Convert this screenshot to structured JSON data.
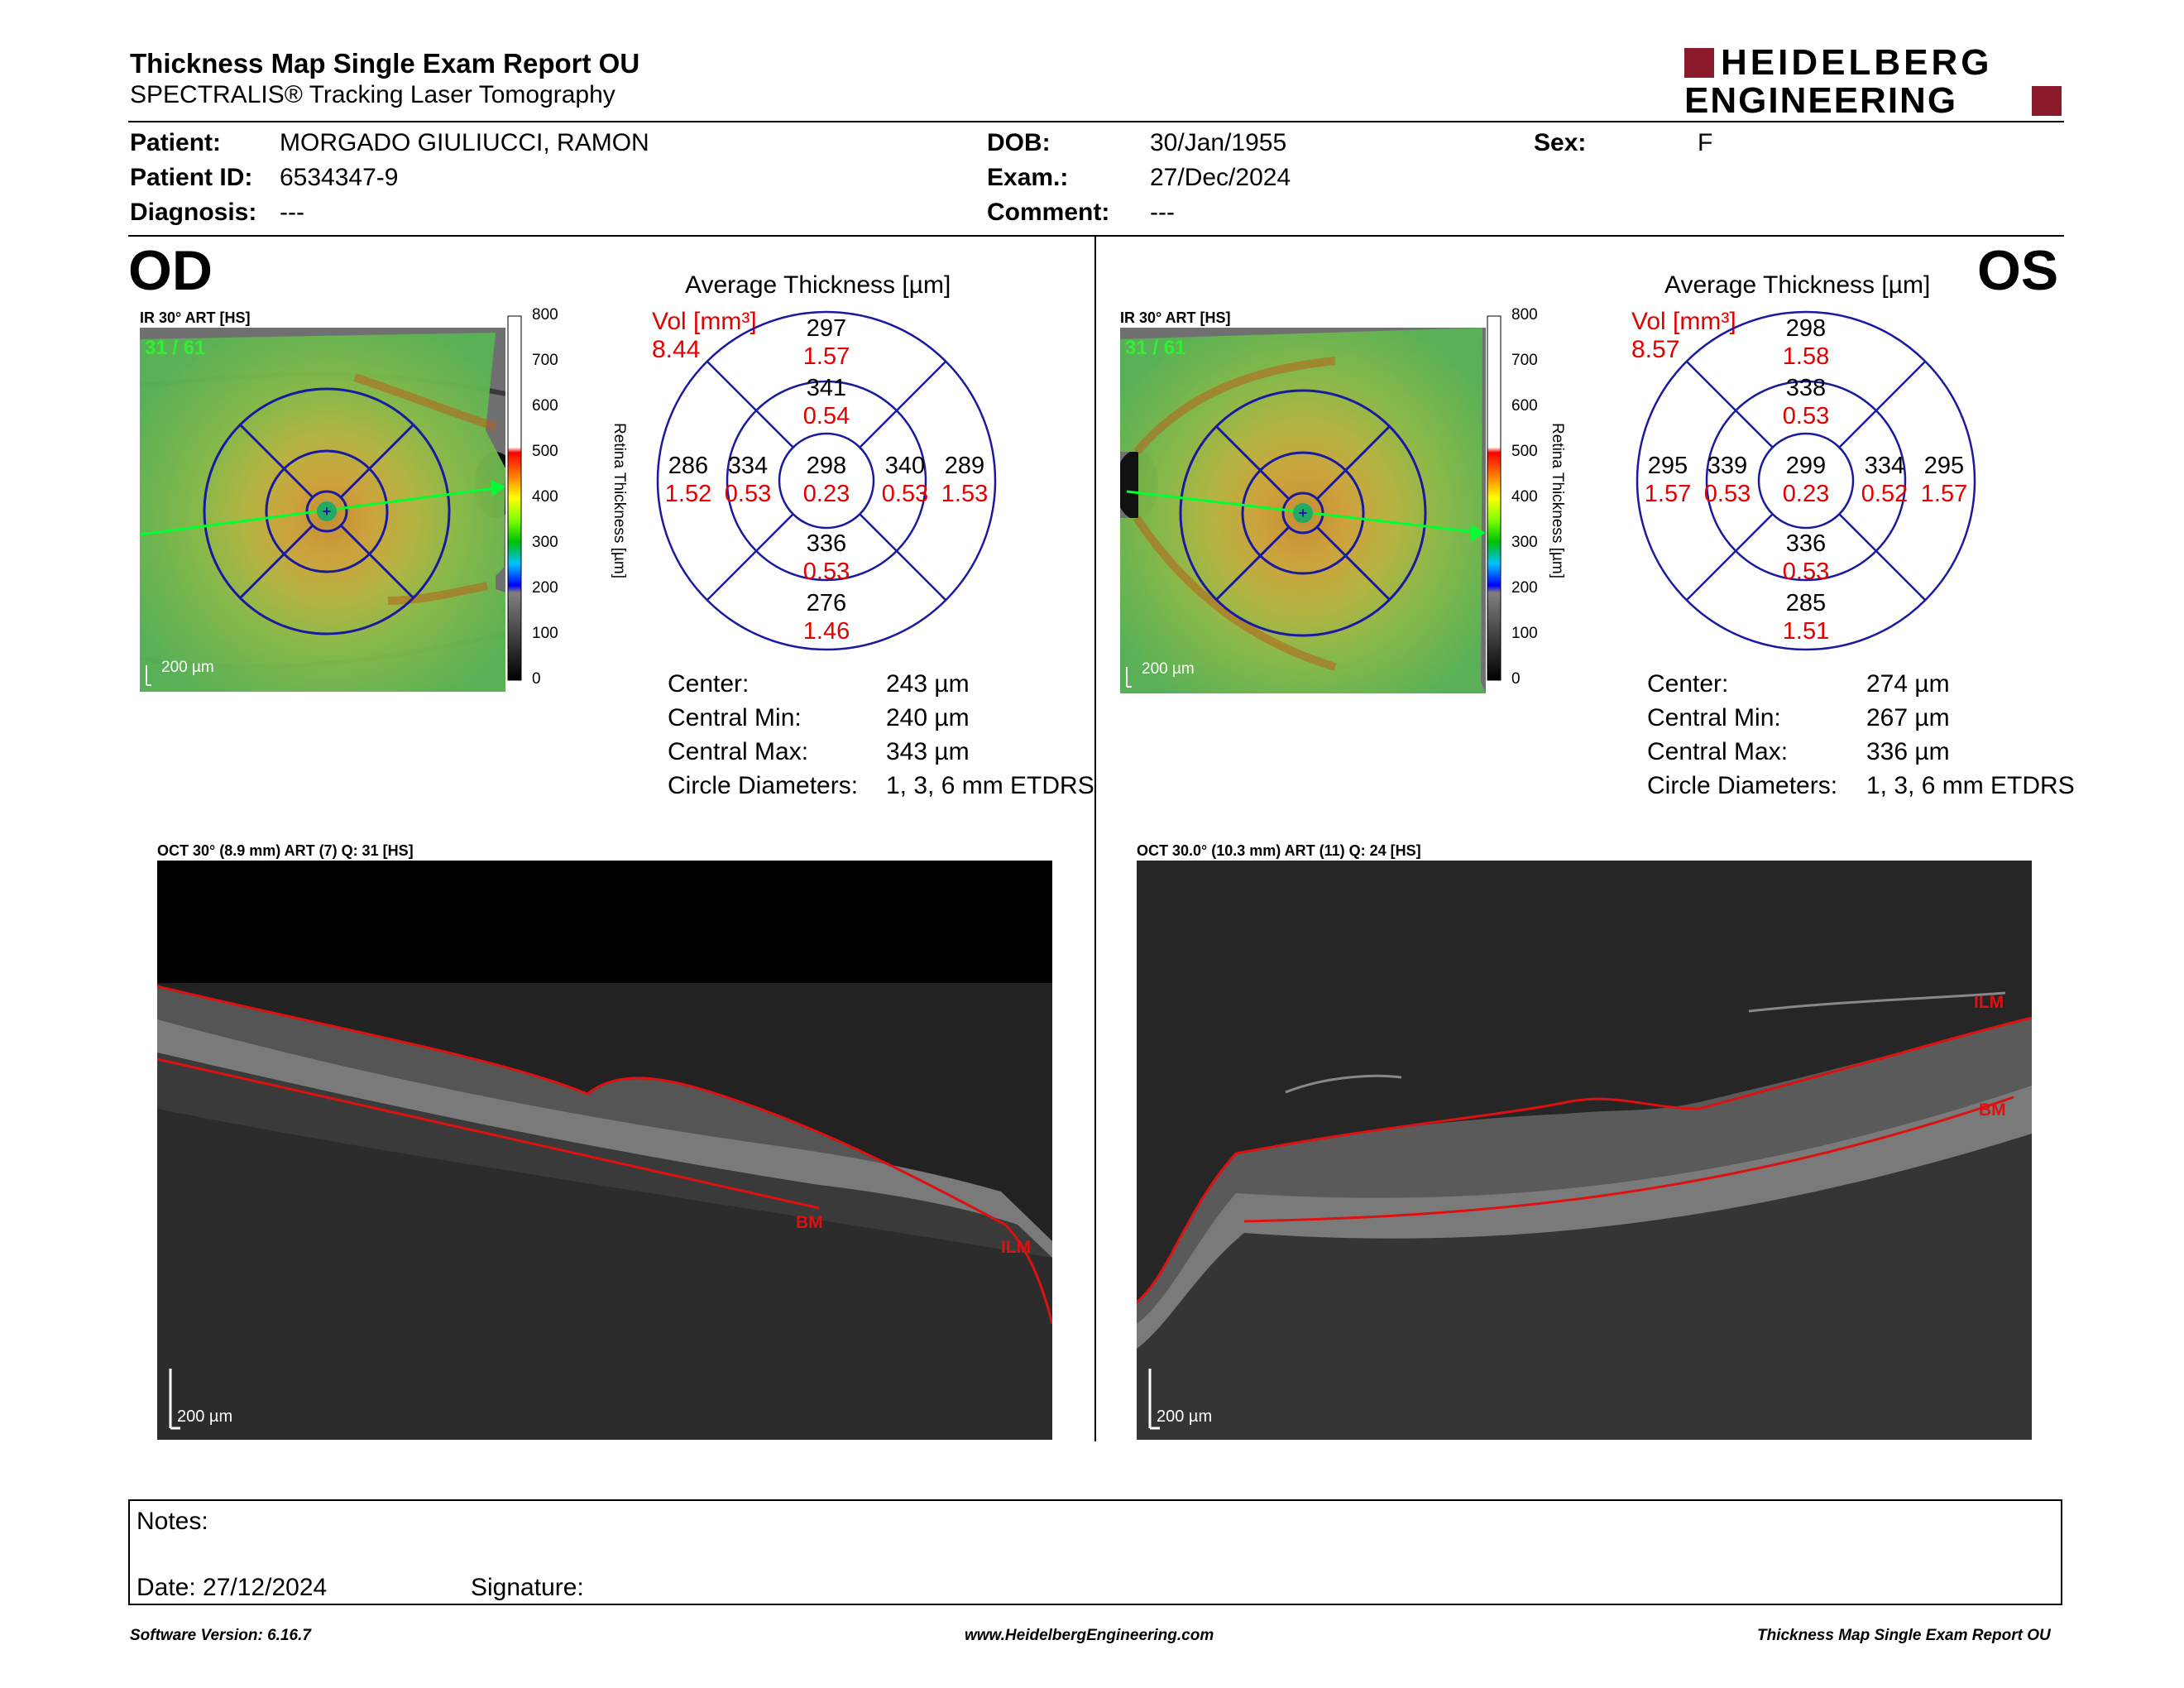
{
  "header": {
    "title": "Thickness Map Single Exam Report OU",
    "subtitle": "SPECTRALIS® Tracking Laser Tomography",
    "logo_line1": "HEIDELBERG",
    "logo_line2": "ENGINEERING"
  },
  "patient": {
    "patient_label": "Patient:",
    "patient_value": "MORGADO GIULIUCCI, RAMON",
    "id_label": "Patient ID:",
    "id_value": "6534347-9",
    "diagnosis_label": "Diagnosis:",
    "diagnosis_value": "---",
    "dob_label": "DOB:",
    "dob_value": "30/Jan/1955",
    "exam_label": "Exam.:",
    "exam_value": "27/Dec/2024",
    "comment_label": "Comment:",
    "comment_value": "---",
    "sex_label": "Sex:",
    "sex_value": "F"
  },
  "od": {
    "eye_label": "OD",
    "fundus_label": "IR 30° ART [HS]",
    "frames": "31 / 61",
    "scale": "200 µm",
    "avg_title": "Average Thickness [µm]",
    "vol_label": "Vol [mm³]",
    "vol_value": "8.44",
    "grid": {
      "top_outer": "297",
      "top_outer_vol": "1.57",
      "top_inner": "341",
      "top_inner_vol": "0.54",
      "left_outer": "286",
      "left_outer_vol": "1.52",
      "left_inner": "334",
      "left_inner_vol": "0.53",
      "center": "298",
      "center_vol": "0.23",
      "right_inner": "340",
      "right_inner_vol": "0.53",
      "right_outer": "289",
      "right_outer_vol": "1.53",
      "bottom_inner": "336",
      "bottom_inner_vol": "0.53",
      "bottom_outer": "276",
      "bottom_outer_vol": "1.46"
    },
    "center_label": "Center:",
    "center_value": "243 µm",
    "cmin_label": "Central Min:",
    "cmin_value": "240 µm",
    "cmax_label": "Central Max:",
    "cmax_value": "343 µm",
    "diam_label": "Circle Diameters:",
    "diam_value": "1, 3, 6 mm ETDRS",
    "oct_label": "OCT 30° (8.9 mm) ART (7) Q: 31 [HS]",
    "oct_scale": "200 µm",
    "ilm": "ILM",
    "bm": "BM"
  },
  "os": {
    "eye_label": "OS",
    "fundus_label": "IR 30° ART [HS]",
    "frames": "31 / 61",
    "scale": "200 µm",
    "avg_title": "Average Thickness [µm]",
    "vol_label": "Vol [mm³]",
    "vol_value": "8.57",
    "grid": {
      "top_outer": "298",
      "top_outer_vol": "1.58",
      "top_inner": "338",
      "top_inner_vol": "0.53",
      "left_outer": "295",
      "left_outer_vol": "1.57",
      "left_inner": "339",
      "left_inner_vol": "0.53",
      "center": "299",
      "center_vol": "0.23",
      "right_inner": "334",
      "right_inner_vol": "0.52",
      "right_outer": "295",
      "right_outer_vol": "1.57",
      "bottom_inner": "336",
      "bottom_inner_vol": "0.53",
      "bottom_outer": "285",
      "bottom_outer_vol": "1.51"
    },
    "center_label": "Center:",
    "center_value": "274 µm",
    "cmin_label": "Central Min:",
    "cmin_value": "267 µm",
    "cmax_label": "Central Max:",
    "cmax_value": "336 µm",
    "diam_label": "Circle Diameters:",
    "diam_value": "1, 3, 6 mm ETDRS",
    "oct_label": "OCT 30.0° (10.3 mm) ART (11) Q: 24 [HS]",
    "oct_scale": "200 µm",
    "ilm": "ILM",
    "bm": "BM"
  },
  "colorbar": {
    "ticks": [
      "800",
      "700",
      "600",
      "500",
      "400",
      "300",
      "200",
      "100",
      "0"
    ],
    "title": "Retina Thickness [µm]"
  },
  "notes": {
    "notes_label": "Notes:",
    "date_label": "Date: 27/12/2024",
    "signature_label": "Signature:"
  },
  "footer": {
    "version": "Software Version: 6.16.7",
    "url": "www.HeidelbergEngineering.com",
    "report": "Thickness Map Single Exam Report OU"
  },
  "colors": {
    "accent_red": "#8b1a2b",
    "grid_blue": "#1a1aa0",
    "volume_red": "#e00000",
    "segmentation_red": "#dd1111"
  }
}
